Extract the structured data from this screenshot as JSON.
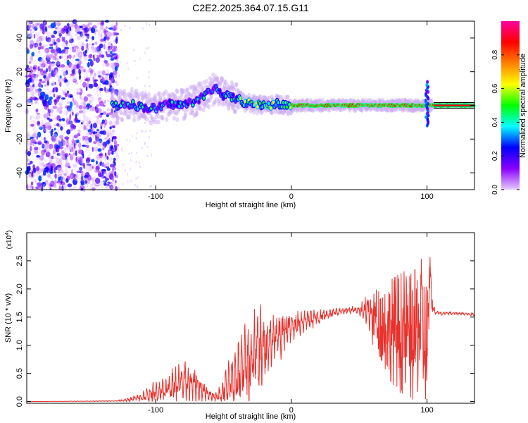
{
  "figure": {
    "title": "C2E2.2025.364.07.15.G11"
  },
  "chart_data": [
    {
      "type": "heatmap",
      "xlabel": "Height of straight line (km)",
      "ylabel": "Frequency (Hz)",
      "xlim": [
        -195,
        135
      ],
      "ylim": [
        -50,
        50
      ],
      "x_ticks": [
        -100,
        0,
        100
      ],
      "y_ticks": [
        -40,
        -20,
        0,
        20,
        40
      ],
      "x_tick_labels": [
        "-100",
        "0",
        "100"
      ],
      "y_tick_labels": [
        "-40",
        "-20",
        "0",
        "20",
        "40"
      ],
      "grid": false,
      "colorbar": {
        "label": "Normalized spectral amplitude",
        "range": [
          0,
          1
        ],
        "ticks": [
          0,
          0.2,
          0.4,
          0.6,
          0.8
        ],
        "tick_labels": [
          "0.0",
          "0.2",
          "0.4",
          "0.6",
          "0.8"
        ],
        "colormap": [
          "#e6ccff",
          "#8a00ff",
          "#0000ff",
          "#00ffff",
          "#00ff00",
          "#ffff00",
          "#ff8000",
          "#ff0000",
          "#ff00a0"
        ]
      },
      "ridge": {
        "x": [
          -130,
          -120,
          -110,
          -100,
          -90,
          -80,
          -70,
          -60,
          -55,
          -50,
          -45,
          -40,
          -35,
          -30,
          -25,
          -20,
          -15,
          -10,
          -5,
          0,
          10,
          20,
          40,
          60,
          80,
          95,
          100,
          105,
          135
        ],
        "frequency": [
          0,
          1,
          -1,
          -2,
          1,
          0,
          3,
          8,
          11,
          6,
          5,
          4,
          2,
          1,
          0,
          0.5,
          0,
          1,
          0,
          0,
          0,
          0,
          0,
          0,
          0,
          0,
          0,
          0,
          0
        ]
      }
    },
    {
      "type": "line",
      "xlabel": "Height of straight line (km)",
      "ylabel": "SNR (10 * v/v)",
      "y_multiplier": "(x10",
      "y_multiplier_exp": "4",
      "y_multiplier_close": ")",
      "xlim": [
        -195,
        135
      ],
      "ylim": [
        -0.03,
        3.0
      ],
      "x_ticks": [
        -100,
        0,
        100
      ],
      "y_ticks": [
        0,
        0.5,
        1,
        1.5,
        2,
        2.5
      ],
      "x_tick_labels": [
        "-100",
        "0",
        "100"
      ],
      "y_tick_labels": [
        "0.0",
        "0.5",
        "1.0",
        "1.5",
        "2.0",
        "2.5"
      ],
      "grid": false,
      "series": [
        {
          "color": "#e8312c",
          "x": [
            -195,
            -130,
            -120,
            -110,
            -100,
            -90,
            -80,
            -70,
            -60,
            -55,
            -50,
            -45,
            -40,
            -35,
            -30,
            -25,
            -20,
            -15,
            -10,
            -5,
            0,
            10,
            20,
            30,
            40,
            50,
            60,
            70,
            80,
            90,
            95,
            100,
            102,
            104,
            106,
            110,
            120,
            135
          ],
          "y": [
            0.0,
            0.01,
            0.03,
            0.08,
            0.16,
            0.25,
            0.34,
            0.28,
            0.12,
            0.08,
            0.18,
            0.32,
            0.45,
            0.6,
            0.75,
            0.88,
            0.98,
            1.05,
            1.14,
            1.25,
            1.33,
            1.45,
            1.5,
            1.58,
            1.62,
            1.63,
            1.55,
            1.3,
            1.25,
            1.1,
            1.4,
            0.9,
            2.2,
            1.7,
            1.58,
            1.57,
            1.57,
            1.55
          ],
          "amplitude": [
            0.0,
            0.005,
            0.02,
            0.06,
            0.12,
            0.18,
            0.25,
            0.18,
            0.06,
            0.05,
            0.22,
            0.35,
            0.42,
            0.5,
            0.55,
            0.5,
            0.45,
            0.35,
            0.3,
            0.25,
            0.2,
            0.12,
            0.1,
            0.06,
            0.04,
            0.05,
            0.35,
            0.65,
            0.85,
            0.9,
            0.95,
            1.0,
            0.4,
            0.1,
            0.02,
            0.02,
            0.02,
            0.02
          ]
        }
      ]
    }
  ]
}
